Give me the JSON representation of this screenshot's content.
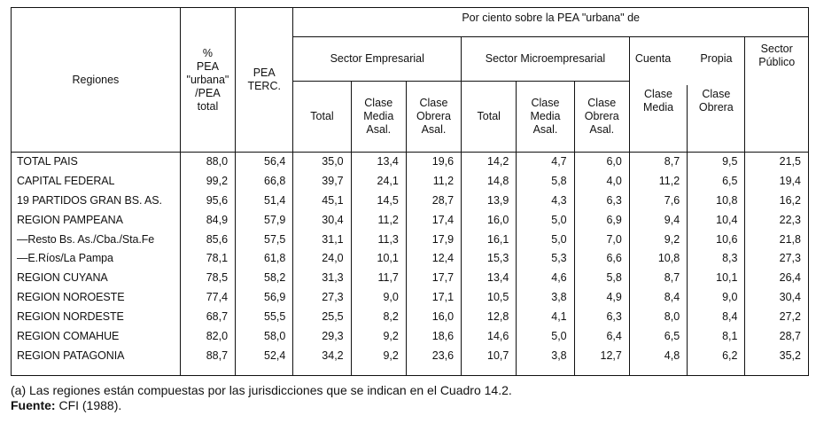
{
  "table": {
    "headers": {
      "regiones": "Regiones",
      "pea_urbana_lines": [
        "%",
        "PEA",
        "\"urbana\"",
        "/PEA",
        "total"
      ],
      "pea_terc_lines": [
        "PEA",
        "TERC."
      ],
      "por_ciento": "Por ciento sobre la PEA \"urbana\" de",
      "sector_empresarial": "Sector Empresarial",
      "sector_microempresarial": "Sector Microempresarial",
      "cuenta": "Cuenta",
      "propia": "Propia",
      "sector_publico_lines": [
        "Sector",
        "Público"
      ],
      "total": "Total",
      "clase_media_asal_lines": [
        "Clase",
        "Media",
        "Asal."
      ],
      "clase_obrera_asal_lines": [
        "Clase",
        "Obrera",
        "Asal."
      ],
      "clase_media_lines": [
        "Clase",
        "Media"
      ],
      "clase_obrera_lines": [
        "Clase",
        "Obrera"
      ]
    },
    "rows": [
      {
        "region": "TOTAL PAIS",
        "v": [
          "88,0",
          "56,4",
          "35,0",
          "13,4",
          "19,6",
          "14,2",
          "4,7",
          "6,0",
          "8,7",
          "9,5",
          "21,5"
        ]
      },
      {
        "region": "CAPITAL FEDERAL",
        "v": [
          "99,2",
          "66,8",
          "39,7",
          "24,1",
          "11,2",
          "14,8",
          "5,8",
          "4,0",
          "11,2",
          "6,5",
          "19,4"
        ]
      },
      {
        "region": "19 PARTIDOS GRAN BS. AS.",
        "v": [
          "95,6",
          "51,4",
          "45,1",
          "14,5",
          "28,7",
          "13,9",
          "4,3",
          "6,3",
          "7,6",
          "10,8",
          "16,2"
        ]
      },
      {
        "region": "REGION PAMPEANA",
        "v": [
          "84,9",
          "57,9",
          "30,4",
          "11,2",
          "17,4",
          "16,0",
          "5,0",
          "6,9",
          "9,4",
          "10,4",
          "22,3"
        ]
      },
      {
        "region": "—Resto Bs. As./Cba./Sta.Fe",
        "v": [
          "85,6",
          "57,5",
          "31,1",
          "11,3",
          "17,9",
          "16,1",
          "5,0",
          "7,0",
          "9,2",
          "10,6",
          "21,8"
        ]
      },
      {
        "region": "—E.Ríos/La Pampa",
        "v": [
          "78,1",
          "61,8",
          "24,0",
          "10,1",
          "12,4",
          "15,3",
          "5,3",
          "6,6",
          "10,8",
          "8,3",
          "27,3"
        ]
      },
      {
        "region": "REGION CUYANA",
        "v": [
          "78,5",
          "58,2",
          "31,3",
          "11,7",
          "17,7",
          "13,4",
          "4,6",
          "5,8",
          "8,7",
          "10,1",
          "26,4"
        ]
      },
      {
        "region": "REGION NOROESTE",
        "v": [
          "77,4",
          "56,9",
          "27,3",
          "9,0",
          "17,1",
          "10,5",
          "3,8",
          "4,9",
          "8,4",
          "9,0",
          "30,4"
        ]
      },
      {
        "region": "REGION NORDESTE",
        "v": [
          "68,7",
          "55,5",
          "25,5",
          "8,2",
          "16,0",
          "12,8",
          "4,1",
          "6,3",
          "8,0",
          "8,4",
          "27,2"
        ]
      },
      {
        "region": "REGION COMAHUE",
        "v": [
          "82,0",
          "58,0",
          "29,3",
          "9,2",
          "18,6",
          "14,6",
          "5,0",
          "6,4",
          "6,5",
          "8,1",
          "28,7"
        ]
      },
      {
        "region": "REGION PATAGONIA",
        "v": [
          "88,7",
          "52,4",
          "34,2",
          "9,2",
          "23,6",
          "10,7",
          "3,8",
          "12,7",
          "4,8",
          "6,2",
          "35,2"
        ]
      }
    ]
  },
  "footnote": "(a) Las regiones están compuestas por las jurisdicciones que se indican en el Cuadro 14.2.",
  "source_label": "Fuente:",
  "source_text": " CFI (1988)."
}
